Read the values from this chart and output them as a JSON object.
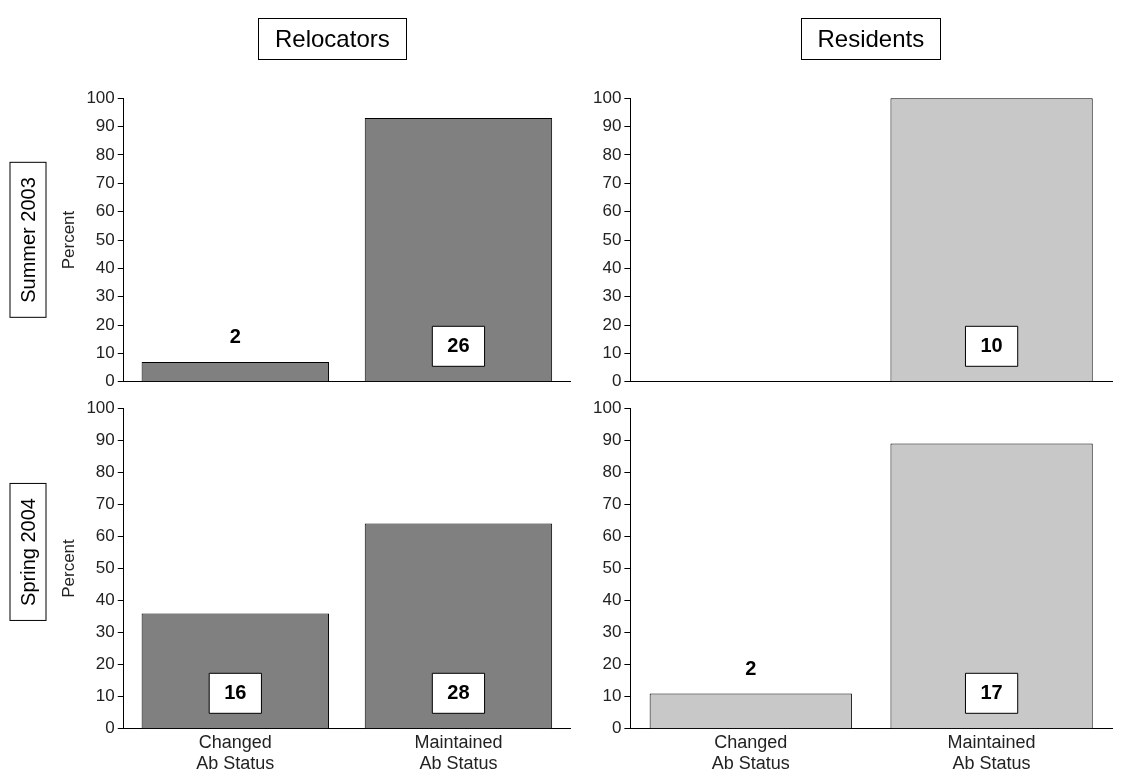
{
  "chart_data": [
    {
      "type": "bar",
      "title": "Relocators",
      "annotations": [
        "Summer 2003",
        "2",
        "26"
      ],
      "ylabel": "Percent",
      "categories": [
        null,
        null
      ],
      "values": [
        7,
        93
      ],
      "color": "#808080",
      "ylim": [
        0,
        100
      ],
      "yticks": [
        0,
        10,
        20,
        30,
        40,
        50,
        60,
        70,
        80,
        90,
        100
      ],
      "tick_labels": "y",
      "legend": false,
      "grid": false
    },
    {
      "type": "bar",
      "title": "Residents",
      "annotations": [
        "10"
      ],
      "categories": [
        null,
        null
      ],
      "values": [
        0,
        100
      ],
      "color": "#c8c8c8",
      "ylim": [
        0,
        100
      ],
      "yticks": [
        0,
        10,
        20,
        30,
        40,
        50,
        60,
        70,
        80,
        90,
        100
      ],
      "tick_labels": "y",
      "legend": false,
      "grid": false
    },
    {
      "type": "bar",
      "annotations": [
        "Spring 2004",
        "16",
        "28"
      ],
      "ylabel": "Percent",
      "categories": [
        "Changed Ab Status",
        "Maintained Ab Status"
      ],
      "values": [
        36,
        64
      ],
      "color": "#808080",
      "ylim": [
        0,
        100
      ],
      "yticks": [
        0,
        10,
        20,
        30,
        40,
        50,
        60,
        70,
        80,
        90,
        100
      ],
      "legend": false,
      "grid": false
    },
    {
      "type": "bar",
      "annotations": [
        "2",
        "17"
      ],
      "categories": [
        "Changed Ab Status",
        "Maintained Ab Status"
      ],
      "values": [
        11,
        89
      ],
      "color": "#c8c8c8",
      "ylim": [
        0,
        100
      ],
      "yticks": [
        0,
        10,
        20,
        30,
        40,
        50,
        60,
        70,
        80,
        90,
        100
      ],
      "legend": false,
      "grid": false
    }
  ]
}
